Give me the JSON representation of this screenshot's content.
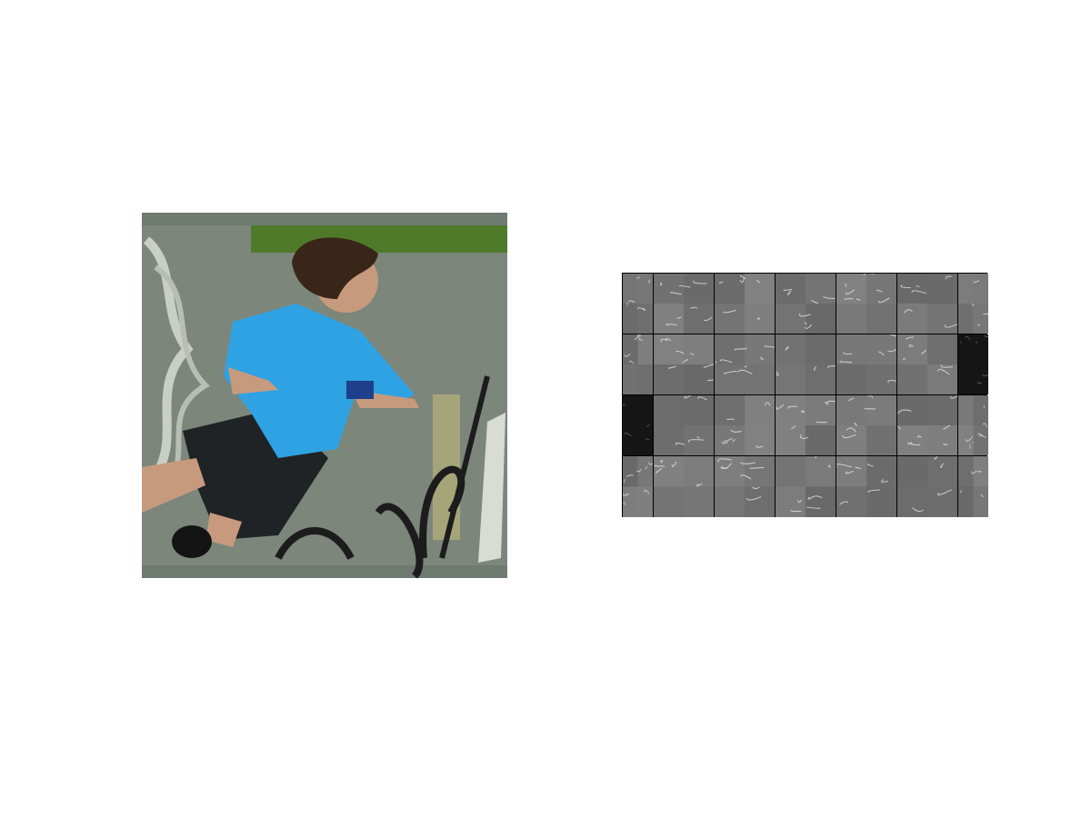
{
  "figure": {
    "left_panel": {
      "subject": "input-photo",
      "colors": {
        "wall": "#7c867b",
        "shirt": "#2fa2e3",
        "shorts": "#1f2326",
        "hair": "#3a2618",
        "skin": "#c79a7e",
        "grass": "#4f7a2a",
        "graffiti": "#1c1c1c"
      }
    },
    "right_panel": {
      "subject": "feature-map-grid",
      "rows": 4,
      "columns": 7,
      "colors": {
        "tile": "#7a7a7a",
        "stroke": "#e6e6e6",
        "dark_tile": "#111111",
        "divider": "#000000"
      },
      "dark_tiles": [
        {
          "row": 2,
          "col": 0
        },
        {
          "row": 1,
          "col": 6
        }
      ]
    }
  }
}
